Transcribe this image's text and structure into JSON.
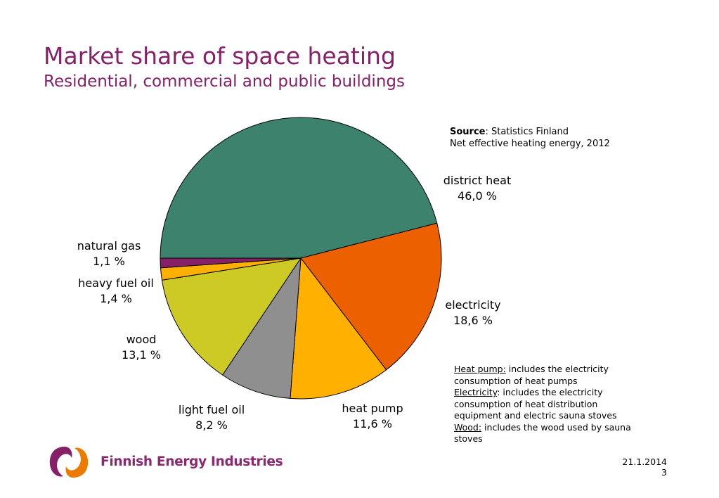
{
  "header": {
    "title": "Market share of space heating",
    "subtitle": "Residential, commercial and public buildings"
  },
  "source": {
    "label": "Source",
    "text": ": Statistics Finland",
    "line2": "Net effective heating energy, 2012"
  },
  "notes": {
    "heat_pump_label": "Heat pump:",
    "heat_pump_text": " includes the electricity consumption of heat pumps",
    "electricity_label": "Electricity",
    "electricity_text": ": includes the electricity consumption of heat distribution equipment and electric sauna stoves",
    "wood_label": "Wood:",
    "wood_text": " includes the wood used by sauna stoves"
  },
  "chart_data": {
    "type": "pie",
    "title": "Market share of space heating",
    "subtitle": "Residential, commercial and public buildings",
    "start_angle_deg": 180,
    "direction": "clockwise",
    "slices": [
      {
        "name": "district heat",
        "value": 46.0,
        "display": "46,0 %",
        "color": "#3c826d"
      },
      {
        "name": "electricity",
        "value": 18.6,
        "display": "18,6 %",
        "color": "#ed6000"
      },
      {
        "name": "heat pump",
        "value": 11.6,
        "display": "11,6 %",
        "color": "#ffb000"
      },
      {
        "name": "light fuel oil",
        "value": 8.2,
        "display": "8,2 %",
        "color": "#8f8f8f"
      },
      {
        "name": "wood",
        "value": 13.1,
        "display": "13,1 %",
        "color": "#cdca25"
      },
      {
        "name": "heavy fuel oil",
        "value": 1.4,
        "display": "1,4 %",
        "color": "#ffb000"
      },
      {
        "name": "natural gas",
        "value": 1.1,
        "display": "1,1 %",
        "color": "#862167"
      }
    ]
  },
  "logo": {
    "text": "Finnish Energy Industries",
    "colors": {
      "purple": "#862167",
      "orange": "#ed7a00"
    }
  },
  "footer": {
    "date": "21.1.2014",
    "page": "3"
  }
}
